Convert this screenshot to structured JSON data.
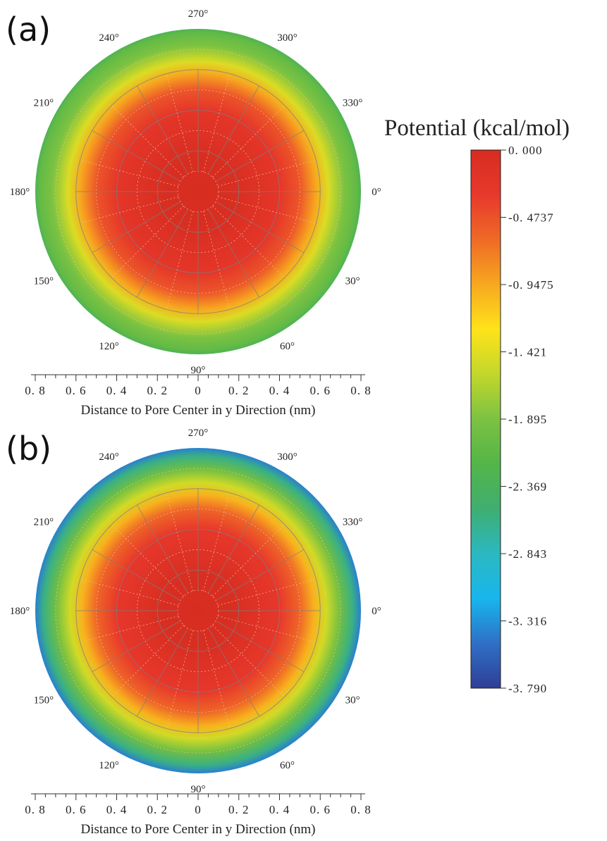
{
  "colors": {
    "stops": [
      "#d62d20",
      "#e8382c",
      "#ef6a26",
      "#f7a81f",
      "#ffe31a",
      "#c2d72b",
      "#7cc242",
      "#54b548",
      "#3fae71",
      "#2bb8c1",
      "#17b6ec",
      "#2f70c6",
      "#2f3e96"
    ]
  },
  "chart_data": {
    "type": "heatmap",
    "subtype": "polar",
    "colorbar": {
      "title": "Potential (kcal/mol)",
      "ticks": [
        "0. 000",
        "-0. 4737",
        "-0. 9475",
        "-1. 421",
        "-1. 895",
        "-2. 369",
        "-2. 843",
        "-3. 316",
        "-3. 790"
      ],
      "range": [
        -3.79,
        0.0
      ]
    },
    "panels": [
      {
        "label": "(a)",
        "angle_labels": [
          "0°",
          "30°",
          "60°",
          "90°",
          "120°",
          "150°",
          "180°",
          "210°",
          "240°",
          "270°",
          "300°",
          "330°"
        ],
        "angles": [
          0,
          30,
          60,
          90,
          120,
          150,
          180,
          210,
          240,
          270,
          300,
          330
        ],
        "radial_rings_nm": [
          0.2,
          0.4,
          0.6,
          0.8
        ],
        "x_tick_labels": [
          "0. 8",
          "0. 6",
          "0. 4",
          "0. 2",
          "0",
          "0. 2",
          "0. 4",
          "0. 6",
          "0. 8"
        ],
        "x_ticks_nm": [
          -0.8,
          -0.6,
          -0.4,
          -0.2,
          0,
          0.2,
          0.4,
          0.6,
          0.8
        ],
        "xlabel": "Distance to Pore Center in y Direction (nm)",
        "radial_profile": [
          {
            "r_nm": 0.0,
            "value": 0.0
          },
          {
            "r_nm": 0.2,
            "value": -0.05
          },
          {
            "r_nm": 0.4,
            "value": -0.25
          },
          {
            "r_nm": 0.5,
            "value": -0.5
          },
          {
            "r_nm": 0.58,
            "value": -0.95
          },
          {
            "r_nm": 0.64,
            "value": -1.45
          },
          {
            "r_nm": 0.72,
            "value": -1.9
          },
          {
            "r_nm": 0.78,
            "value": -2.1
          },
          {
            "r_nm": 0.8,
            "value": -2.3
          }
        ]
      },
      {
        "label": "(b)",
        "angle_labels": [
          "0°",
          "30°",
          "60°",
          "90°",
          "120°",
          "150°",
          "180°",
          "210°",
          "240°",
          "270°",
          "300°",
          "330°"
        ],
        "angles": [
          0,
          30,
          60,
          90,
          120,
          150,
          180,
          210,
          240,
          270,
          300,
          330
        ],
        "radial_rings_nm": [
          0.2,
          0.4,
          0.6,
          0.8
        ],
        "x_tick_labels": [
          "0. 8",
          "0. 6",
          "0. 4",
          "0. 2",
          "0",
          "0. 2",
          "0. 4",
          "0. 6",
          "0. 8"
        ],
        "x_ticks_nm": [
          -0.8,
          -0.6,
          -0.4,
          -0.2,
          0,
          0.2,
          0.4,
          0.6,
          0.8
        ],
        "xlabel": "Distance to Pore Center in y Direction (nm)",
        "radial_profile": [
          {
            "r_nm": 0.0,
            "value": 0.0
          },
          {
            "r_nm": 0.2,
            "value": -0.05
          },
          {
            "r_nm": 0.4,
            "value": -0.3
          },
          {
            "r_nm": 0.5,
            "value": -0.6
          },
          {
            "r_nm": 0.57,
            "value": -1.0
          },
          {
            "r_nm": 0.63,
            "value": -1.5
          },
          {
            "r_nm": 0.7,
            "value": -2.0
          },
          {
            "r_nm": 0.76,
            "value": -2.6
          },
          {
            "r_nm": 0.8,
            "value": -3.4
          }
        ]
      }
    ]
  }
}
